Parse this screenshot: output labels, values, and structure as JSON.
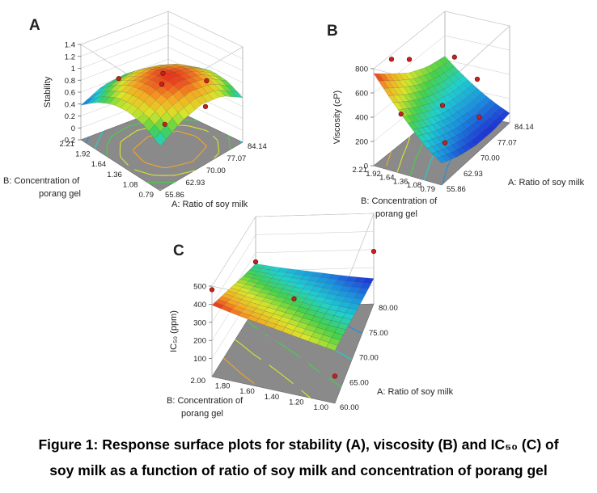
{
  "caption": {
    "line1": "Figure 1: Response surface plots for stability (A), viscosity (B) and IC₅₀ (C) of",
    "line2": "soy milk as a function of ratio of soy milk and concentration of porang gel"
  },
  "chart_data": [
    {
      "panel": "A",
      "type": "surface3d",
      "zlabel": "Stability",
      "xlabel": "A: Ratio of soy milk",
      "ylabel_lines": [
        "B: Concentration of",
        "porang gel"
      ],
      "x_ticks": [
        "55.86",
        "62.93",
        "70.00",
        "77.07",
        "84.14"
      ],
      "y_ticks": [
        "0.79",
        "1.08",
        "1.36",
        "1.64",
        "1.92",
        "2.21"
      ],
      "z_ticks": [
        "-0.2",
        "0",
        "0.2",
        "0.4",
        "0.6",
        "0.8",
        "1",
        "1.2",
        "1.4"
      ],
      "xlim": [
        55.86,
        84.14
      ],
      "ylim": [
        0.79,
        2.21
      ],
      "zlim": [
        -0.2,
        1.4
      ],
      "surface_rows": [
        [
          0.55,
          0.75,
          0.84,
          0.78,
          0.55
        ],
        [
          0.72,
          0.92,
          1.0,
          0.93,
          0.7
        ],
        [
          0.78,
          0.98,
          1.05,
          0.98,
          0.75
        ],
        [
          0.74,
          0.94,
          1.0,
          0.93,
          0.7
        ],
        [
          0.6,
          0.79,
          0.85,
          0.78,
          0.55
        ],
        [
          0.38,
          0.57,
          0.62,
          0.55,
          0.33
        ]
      ],
      "design_points": [
        {
          "x": 70.0,
          "y": 1.5,
          "z": 1.0
        },
        {
          "x": 62.93,
          "y": 1.92,
          "z": 0.85
        },
        {
          "x": 77.07,
          "y": 1.08,
          "z": 0.9
        },
        {
          "x": 77.07,
          "y": 1.92,
          "z": 0.45
        },
        {
          "x": 62.93,
          "y": 1.08,
          "z": 0.55
        },
        {
          "x": 84.14,
          "y": 1.5,
          "z": 0.1
        }
      ]
    },
    {
      "panel": "B",
      "type": "surface3d",
      "zlabel": "Viscosity (cP)",
      "xlabel": "A: Ratio of soy milk",
      "ylabel_lines": [
        "B: Concentration of",
        "porang gel"
      ],
      "x_ticks": [
        "55.86",
        "62.93",
        "70.00",
        "77.07",
        "84.14"
      ],
      "y_ticks": [
        "0.79",
        "1.08",
        "1.36",
        "1.64",
        "1.92",
        "2.21"
      ],
      "z_ticks": [
        "0",
        "200",
        "400",
        "600",
        "800"
      ],
      "xlim": [
        55.86,
        84.14
      ],
      "ylim": [
        0.79,
        2.21
      ],
      "zlim": [
        0,
        800
      ],
      "surface_rows": [
        [
          180,
          110,
          70,
          60,
          80
        ],
        [
          260,
          190,
          140,
          120,
          130
        ],
        [
          370,
          280,
          220,
          190,
          190
        ],
        [
          490,
          390,
          310,
          270,
          260
        ],
        [
          620,
          510,
          420,
          360,
          340
        ],
        [
          760,
          640,
          530,
          460,
          430
        ]
      ],
      "design_points": [
        {
          "x": 62.93,
          "y": 2.21,
          "z": 760
        },
        {
          "x": 70.0,
          "y": 2.21,
          "z": 640
        },
        {
          "x": 55.86,
          "y": 1.64,
          "z": 490
        },
        {
          "x": 70.0,
          "y": 1.5,
          "z": 330
        },
        {
          "x": 84.14,
          "y": 1.5,
          "z": 300
        },
        {
          "x": 77.07,
          "y": 1.08,
          "z": 150
        },
        {
          "x": 62.93,
          "y": 1.08,
          "z": 190
        },
        {
          "x": 84.14,
          "y": 2.0,
          "z": 440
        }
      ]
    },
    {
      "panel": "C",
      "type": "surface3d",
      "zlabel": "IC₅₀ (ppm)",
      "xlabel": "A: Ratio of soy milk",
      "ylabel_lines": [
        "B: Concentration of",
        "porang gel"
      ],
      "x_ticks": [
        "60.00",
        "65.00",
        "70.00",
        "75.00",
        "80.00"
      ],
      "y_ticks": [
        "1.00",
        "1.20",
        "1.40",
        "1.60",
        "1.80",
        "2.00"
      ],
      "z_ticks": [
        "100",
        "200",
        "300",
        "400",
        "500"
      ],
      "xlim": [
        60,
        80
      ],
      "ylim": [
        1.0,
        2.0
      ],
      "zlim": [
        0,
        500
      ],
      "surface_rows": [
        [
          290,
          255,
          215,
          175,
          140
        ],
        [
          310,
          270,
          230,
          190,
          155
        ],
        [
          330,
          290,
          250,
          210,
          175
        ],
        [
          350,
          310,
          270,
          230,
          195
        ],
        [
          370,
          330,
          290,
          250,
          215
        ],
        [
          395,
          355,
          315,
          275,
          240
        ]
      ],
      "design_points": [
        {
          "x": 60,
          "y": 2.0,
          "z": 480
        },
        {
          "x": 70,
          "y": 1.5,
          "z": 270
        },
        {
          "x": 80,
          "y": 1.0,
          "z": 290
        },
        {
          "x": 60,
          "y": 1.0,
          "z": 150
        },
        {
          "x": 80,
          "y": 2.0,
          "z": 250
        }
      ]
    }
  ],
  "colors": {
    "surface_scale": [
      "#1f2bd6",
      "#1a8fe0",
      "#1fd0d0",
      "#46d14a",
      "#d9e62a",
      "#f5a623",
      "#e8231b"
    ],
    "floor": "#8a8a8a",
    "point": "#c8201c"
  }
}
